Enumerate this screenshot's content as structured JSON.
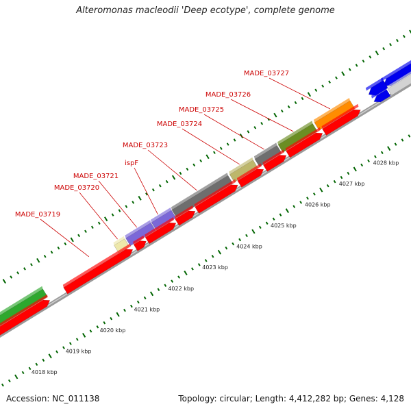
{
  "title": "Alteromonas macleodii 'Deep ecotype', complete genome",
  "footer": {
    "accession": "Accession: NC_011138",
    "summary": "Topology: circular; Length: 4,412,282 bp; Genes: 4,128"
  },
  "kbp_labels": [
    "4018 kbp",
    "4019 kbp",
    "4020 kbp",
    "4021 kbp",
    "4022 kbp",
    "4023 kbp",
    "4024 kbp",
    "4025 kbp",
    "4026 kbp",
    "4027 kbp",
    "4028 kbp"
  ],
  "gene_labels": [
    "MADE_03719",
    "MADE_03720",
    "MADE_03721",
    "ispF",
    "MADE_03723",
    "MADE_03724",
    "MADE_03725",
    "MADE_03726",
    "MADE_03727"
  ],
  "colors": {
    "cds_red": "#ff0000",
    "gene_green": "#2ea82e",
    "gene_purple": "#7b68d8",
    "gene_grey": "#6e6e6e",
    "gene_khaki": "#bdb76b",
    "gene_olive": "#6b8e23",
    "gene_orange": "#ff8c00",
    "gene_yellow": "#eee8aa",
    "gene_blue": "#0000ee",
    "gene_lightgrey": "#d3d3d3",
    "label_red": "#cc0000",
    "tick_green": "#006400"
  }
}
